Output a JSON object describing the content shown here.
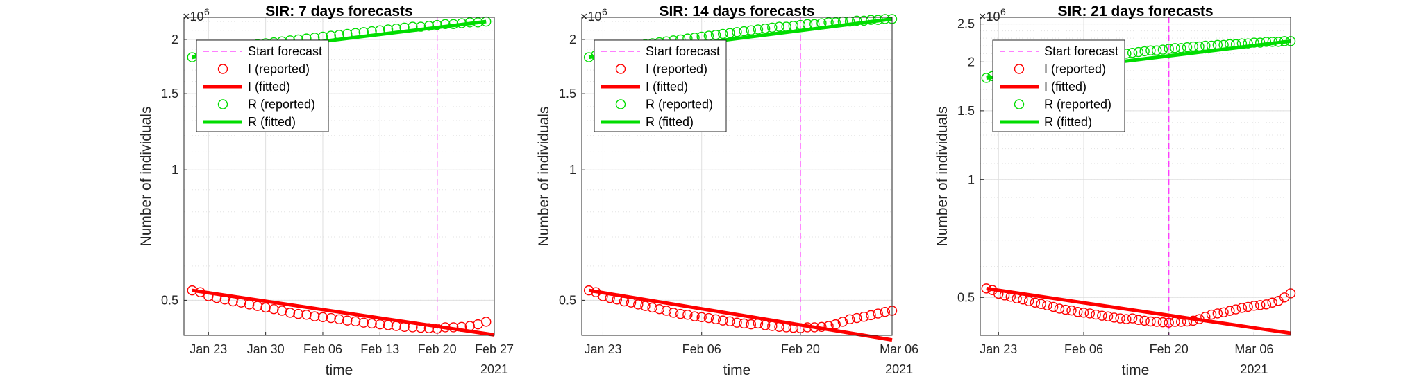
{
  "chart_data": [
    {
      "type": "line",
      "title": "SIR: 7 days forecasts",
      "xlabel": "time",
      "ylabel": "Number of individuals",
      "yscale": "log",
      "y_exponent_label": "×10",
      "y_exponent": "6",
      "ylim": [
        0.415,
        2.25
      ],
      "yticks": [
        0.5,
        1,
        1.5,
        2
      ],
      "ytick_labels": [
        "0.5",
        "1",
        "1.5",
        "2"
      ],
      "xlim": [
        -1,
        37
      ],
      "xticks": [
        2,
        9,
        16,
        23,
        30,
        37
      ],
      "xtick_labels": [
        "Jan 23",
        "Jan 30",
        "Feb 06",
        "Feb 13",
        "Feb 20",
        "Feb 27"
      ],
      "year_label": "2021",
      "forecast_start": 30,
      "grid": true,
      "minor_grid": true,
      "legend_position": "top-left",
      "legend": [
        "Start forecast",
        "I (reported)",
        "I (fitted)",
        "R (reported)",
        "R (fitted)"
      ],
      "series": [
        {
          "name": "I (reported)",
          "style": "markers",
          "color": "#ff0000",
          "x": [
            0,
            1,
            2,
            3,
            4,
            5,
            6,
            7,
            8,
            9,
            10,
            11,
            12,
            13,
            14,
            15,
            16,
            17,
            18,
            19,
            20,
            21,
            22,
            23,
            24,
            25,
            26,
            27,
            28,
            29,
            30,
            31,
            32,
            33,
            34,
            35,
            36
          ],
          "values": [
            0.527,
            0.522,
            0.511,
            0.506,
            0.502,
            0.497,
            0.494,
            0.489,
            0.485,
            0.481,
            0.477,
            0.473,
            0.468,
            0.465,
            0.463,
            0.459,
            0.457,
            0.455,
            0.452,
            0.449,
            0.447,
            0.444,
            0.442,
            0.44,
            0.438,
            0.436,
            0.434,
            0.433,
            0.432,
            0.431,
            0.43,
            0.433,
            0.433,
            0.434,
            0.436,
            0.44,
            0.446
          ]
        },
        {
          "name": "I (fitted)",
          "style": "line",
          "color": "#ff0000",
          "x": [
            0,
            37
          ],
          "values": [
            0.527,
            0.416
          ]
        },
        {
          "name": "R (reported)",
          "style": "markers",
          "color": "#00dd00",
          "x": [
            0,
            1,
            2,
            3,
            4,
            5,
            6,
            7,
            8,
            9,
            10,
            11,
            12,
            13,
            14,
            15,
            16,
            17,
            18,
            19,
            20,
            21,
            22,
            23,
            24,
            25,
            26,
            27,
            28,
            29,
            30,
            31,
            32,
            33,
            34,
            35,
            36
          ],
          "values": [
            1.82,
            1.84,
            1.86,
            1.88,
            1.89,
            1.91,
            1.92,
            1.93,
            1.95,
            1.96,
            1.97,
            1.98,
            1.99,
            2.0,
            2.01,
            2.02,
            2.03,
            2.04,
            2.05,
            2.06,
            2.07,
            2.08,
            2.09,
            2.1,
            2.11,
            2.12,
            2.13,
            2.14,
            2.14,
            2.15,
            2.16,
            2.17,
            2.17,
            2.18,
            2.19,
            2.19,
            2.2
          ]
        },
        {
          "name": "R (fitted)",
          "style": "line",
          "color": "#00dd00",
          "x": [
            0,
            36
          ],
          "values": [
            1.82,
            2.2
          ]
        }
      ]
    },
    {
      "type": "line",
      "title": "SIR: 14 days forecasts",
      "xlabel": "time",
      "ylabel": "Number of individuals",
      "yscale": "log",
      "y_exponent_label": "×10",
      "y_exponent": "6",
      "ylim": [
        0.415,
        2.25
      ],
      "yticks": [
        0.5,
        1,
        1.5,
        2
      ],
      "ytick_labels": [
        "0.5",
        "1",
        "1.5",
        "2"
      ],
      "xlim": [
        -1,
        43
      ],
      "xticks": [
        2,
        16,
        30,
        44
      ],
      "xtick_labels": [
        "Jan 23",
        "Feb 06",
        "Feb 20",
        "Mar 06"
      ],
      "year_label": "2021",
      "forecast_start": 30,
      "grid": true,
      "minor_grid": true,
      "legend_position": "top-left",
      "legend": [
        "Start forecast",
        "I (reported)",
        "I (fitted)",
        "R (reported)",
        "R (fitted)"
      ],
      "series": [
        {
          "name": "I (reported)",
          "style": "markers",
          "color": "#ff0000",
          "x": [
            0,
            1,
            2,
            3,
            4,
            5,
            6,
            7,
            8,
            9,
            10,
            11,
            12,
            13,
            14,
            15,
            16,
            17,
            18,
            19,
            20,
            21,
            22,
            23,
            24,
            25,
            26,
            27,
            28,
            29,
            30,
            31,
            32,
            33,
            34,
            35,
            36,
            37,
            38,
            39,
            40,
            41,
            42,
            43
          ],
          "values": [
            0.527,
            0.522,
            0.511,
            0.506,
            0.502,
            0.497,
            0.494,
            0.489,
            0.485,
            0.481,
            0.477,
            0.473,
            0.468,
            0.465,
            0.463,
            0.459,
            0.457,
            0.455,
            0.452,
            0.449,
            0.447,
            0.444,
            0.442,
            0.44,
            0.442,
            0.438,
            0.436,
            0.434,
            0.433,
            0.432,
            0.431,
            0.433,
            0.433,
            0.434,
            0.436,
            0.44,
            0.446,
            0.452,
            0.455,
            0.458,
            0.462,
            0.466,
            0.47,
            0.473
          ]
        },
        {
          "name": "I (fitted)",
          "style": "line",
          "color": "#ff0000",
          "x": [
            0,
            43
          ],
          "values": [
            0.527,
            0.405
          ]
        },
        {
          "name": "R (reported)",
          "style": "markers",
          "color": "#00dd00",
          "x": [
            0,
            1,
            2,
            3,
            4,
            5,
            6,
            7,
            8,
            9,
            10,
            11,
            12,
            13,
            14,
            15,
            16,
            17,
            18,
            19,
            20,
            21,
            22,
            23,
            24,
            25,
            26,
            27,
            28,
            29,
            30,
            31,
            32,
            33,
            34,
            35,
            36,
            37,
            38,
            39,
            40,
            41,
            42,
            43
          ],
          "values": [
            1.82,
            1.84,
            1.86,
            1.88,
            1.89,
            1.91,
            1.92,
            1.93,
            1.95,
            1.96,
            1.97,
            1.98,
            1.99,
            2.0,
            2.01,
            2.02,
            2.03,
            2.04,
            2.05,
            2.06,
            2.07,
            2.08,
            2.09,
            2.1,
            2.11,
            2.12,
            2.13,
            2.14,
            2.14,
            2.15,
            2.16,
            2.17,
            2.17,
            2.18,
            2.19,
            2.19,
            2.2,
            2.2,
            2.21,
            2.21,
            2.22,
            2.22,
            2.23,
            2.23
          ]
        },
        {
          "name": "R (fitted)",
          "style": "line",
          "color": "#00dd00",
          "x": [
            0,
            43
          ],
          "values": [
            1.82,
            2.23
          ]
        }
      ]
    },
    {
      "type": "line",
      "title": "SIR: 21 days forecasts",
      "xlabel": "time",
      "ylabel": "Number of individuals",
      "yscale": "log",
      "y_exponent_label": "×10",
      "y_exponent": "6",
      "ylim": [
        0.4,
        2.6
      ],
      "yticks": [
        0.5,
        1,
        1.5,
        2,
        2.5
      ],
      "ytick_labels": [
        "0.5",
        "1",
        "1.5",
        "2",
        "2.5"
      ],
      "xlim": [
        -1,
        50
      ],
      "xticks": [
        2,
        16,
        30,
        44
      ],
      "xtick_labels": [
        "Jan 23",
        "Feb 06",
        "Feb 20",
        "Mar 06"
      ],
      "year_label": "2021",
      "forecast_start": 30,
      "grid": true,
      "minor_grid": true,
      "legend_position": "top-left",
      "legend": [
        "Start forecast",
        "I (reported)",
        "I (fitted)",
        "R (reported)",
        "R (fitted)"
      ],
      "series": [
        {
          "name": "I (reported)",
          "style": "markers",
          "color": "#ff0000",
          "x": [
            0,
            1,
            2,
            3,
            4,
            5,
            6,
            7,
            8,
            9,
            10,
            11,
            12,
            13,
            14,
            15,
            16,
            17,
            18,
            19,
            20,
            21,
            22,
            23,
            24,
            25,
            26,
            27,
            28,
            29,
            30,
            31,
            32,
            33,
            34,
            35,
            36,
            37,
            38,
            39,
            40,
            41,
            42,
            43,
            44,
            45,
            46,
            47,
            48,
            49,
            50
          ],
          "values": [
            0.527,
            0.522,
            0.511,
            0.506,
            0.502,
            0.497,
            0.494,
            0.489,
            0.485,
            0.481,
            0.477,
            0.473,
            0.468,
            0.465,
            0.463,
            0.459,
            0.457,
            0.455,
            0.452,
            0.449,
            0.447,
            0.444,
            0.442,
            0.44,
            0.442,
            0.438,
            0.436,
            0.434,
            0.433,
            0.432,
            0.431,
            0.433,
            0.433,
            0.434,
            0.436,
            0.44,
            0.446,
            0.452,
            0.455,
            0.458,
            0.462,
            0.466,
            0.47,
            0.473,
            0.476,
            0.478,
            0.48,
            0.485,
            0.49,
            0.5,
            0.512
          ]
        },
        {
          "name": "I (fitted)",
          "style": "line",
          "color": "#ff0000",
          "x": [
            0,
            50
          ],
          "values": [
            0.527,
            0.405
          ]
        },
        {
          "name": "R (reported)",
          "style": "markers",
          "color": "#00dd00",
          "x": [
            0,
            1,
            2,
            3,
            4,
            5,
            6,
            7,
            8,
            9,
            10,
            11,
            12,
            13,
            14,
            15,
            16,
            17,
            18,
            19,
            20,
            21,
            22,
            23,
            24,
            25,
            26,
            27,
            28,
            29,
            30,
            31,
            32,
            33,
            34,
            35,
            36,
            37,
            38,
            39,
            40,
            41,
            42,
            43,
            44,
            45,
            46,
            47,
            48,
            49,
            50
          ],
          "values": [
            1.82,
            1.84,
            1.86,
            1.88,
            1.89,
            1.91,
            1.92,
            1.93,
            1.95,
            1.96,
            1.97,
            1.98,
            1.99,
            2.0,
            2.01,
            2.02,
            2.03,
            2.04,
            2.05,
            2.06,
            2.07,
            2.08,
            2.09,
            2.1,
            2.11,
            2.12,
            2.13,
            2.14,
            2.14,
            2.15,
            2.16,
            2.17,
            2.17,
            2.18,
            2.19,
            2.19,
            2.2,
            2.2,
            2.21,
            2.21,
            2.22,
            2.22,
            2.23,
            2.23,
            2.24,
            2.24,
            2.25,
            2.25,
            2.25,
            2.26,
            2.26
          ]
        },
        {
          "name": "R (fitted)",
          "style": "line",
          "color": "#00dd00",
          "x": [
            0,
            50
          ],
          "values": [
            1.82,
            2.26
          ]
        }
      ]
    }
  ],
  "colors": {
    "infected": "#ff0000",
    "recovered": "#00dd00",
    "forecast_line": "#ff33ff",
    "grid": "#dfdfdf",
    "axis": "#262626"
  }
}
